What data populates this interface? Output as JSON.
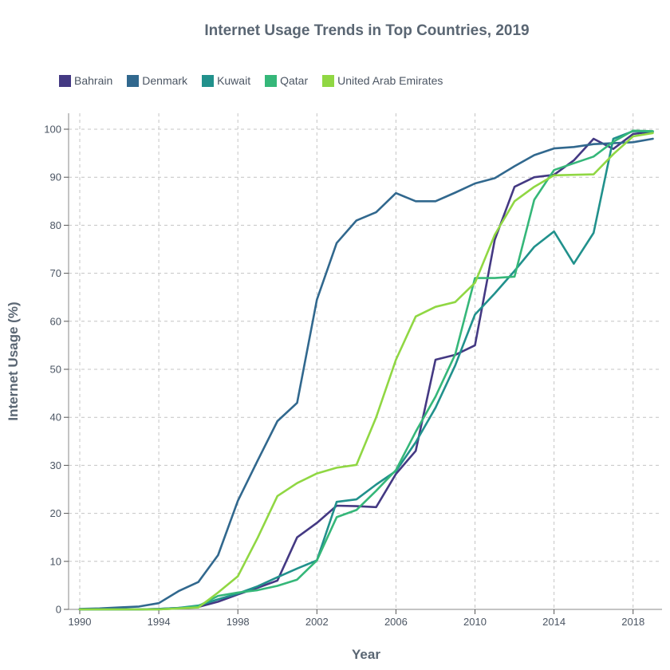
{
  "chart_data": {
    "type": "line",
    "title": "Internet Usage Trends in Top Countries, 2019",
    "xlabel": "Year",
    "ylabel": "Internet Usage (%)",
    "xlim": [
      1990,
      2019
    ],
    "ylim": [
      0,
      100
    ],
    "x_ticks": [
      1990,
      1994,
      1998,
      2002,
      2006,
      2010,
      2014,
      2018
    ],
    "y_ticks": [
      0,
      10,
      20,
      30,
      40,
      50,
      60,
      70,
      80,
      90,
      100
    ],
    "grid": true,
    "legend_position": "top-left",
    "x": [
      1990,
      1991,
      1992,
      1993,
      1994,
      1995,
      1996,
      1997,
      1998,
      1999,
      2000,
      2001,
      2002,
      2003,
      2004,
      2005,
      2006,
      2007,
      2008,
      2009,
      2010,
      2011,
      2012,
      2013,
      2014,
      2015,
      2016,
      2017,
      2018,
      2019
    ],
    "series": [
      {
        "name": "Bahrain",
        "color": "#443983",
        "values": [
          0,
          0,
          0,
          0,
          0.1,
          0.3,
          0.5,
          1.6,
          3.1,
          4.5,
          6.0,
          15.0,
          18.0,
          21.6,
          21.5,
          21.3,
          28.2,
          33.0,
          52.0,
          53.0,
          55.0,
          77.0,
          88.0,
          90.0,
          90.5,
          93.5,
          98.0,
          95.9,
          99.0,
          99.5
        ]
      },
      {
        "name": "Denmark",
        "color": "#31688e",
        "values": [
          0.1,
          0.2,
          0.4,
          0.6,
          1.3,
          3.8,
          5.7,
          11.3,
          22.6,
          31.0,
          39.2,
          43.0,
          64.5,
          76.3,
          81.0,
          82.7,
          86.7,
          85.0,
          85.0,
          86.8,
          88.7,
          89.8,
          92.3,
          94.6,
          96.0,
          96.3,
          96.9,
          97.1,
          97.3,
          98.0
        ]
      },
      {
        "name": "Kuwait",
        "color": "#21918c",
        "values": [
          0,
          0,
          0,
          0,
          0.1,
          0.3,
          0.8,
          2.1,
          3.3,
          4.8,
          6.7,
          8.5,
          10.2,
          22.4,
          22.9,
          26.0,
          28.8,
          34.8,
          42.0,
          50.8,
          61.4,
          65.8,
          70.5,
          75.5,
          78.7,
          72.0,
          78.4,
          98.0,
          99.6,
          99.5
        ]
      },
      {
        "name": "Qatar",
        "color": "#35b779",
        "values": [
          0,
          0,
          0,
          0,
          0,
          0.2,
          0.7,
          2.8,
          3.5,
          4.0,
          4.9,
          6.2,
          10.2,
          19.2,
          20.7,
          24.7,
          29.0,
          37.0,
          44.3,
          53.1,
          69.0,
          69.0,
          69.3,
          85.3,
          91.5,
          92.9,
          94.3,
          97.4,
          99.7,
          99.6
        ]
      },
      {
        "name": "United Arab Emirates",
        "color": "#90d743",
        "values": [
          0,
          0,
          0,
          0,
          0,
          0.2,
          0.4,
          3.5,
          6.9,
          14.9,
          23.6,
          26.3,
          28.3,
          29.5,
          30.1,
          40.0,
          52.0,
          61.0,
          63.0,
          64.0,
          68.0,
          78.0,
          85.0,
          88.0,
          90.4,
          90.5,
          90.6,
          94.8,
          98.5,
          99.2
        ]
      }
    ]
  }
}
